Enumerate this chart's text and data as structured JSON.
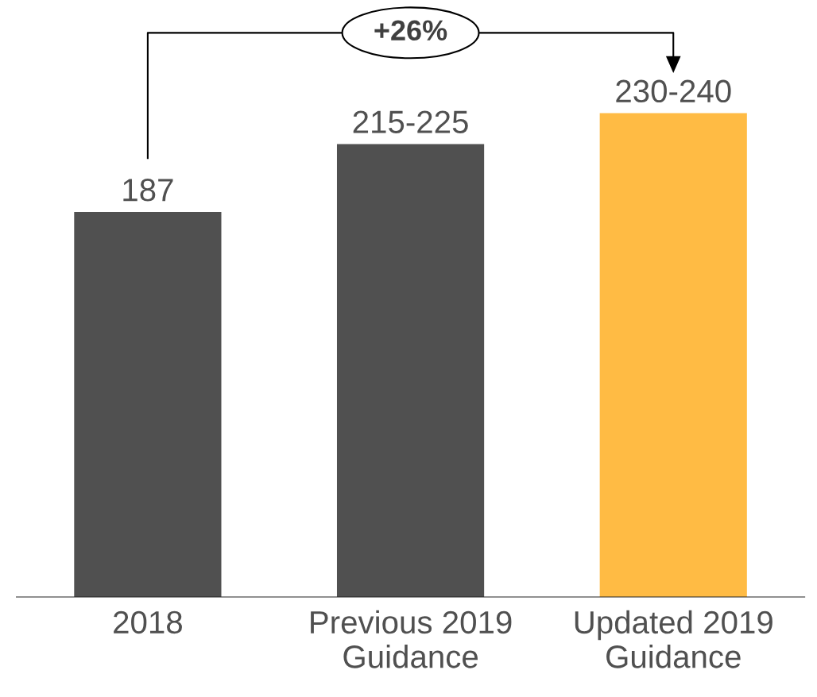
{
  "chart_data": {
    "type": "bar",
    "categories": [
      "2018",
      "Previous 2019 Guidance",
      "Updated 2019 Guidance"
    ],
    "values": [
      187,
      220,
      235
    ],
    "value_labels": [
      "187",
      "215-225",
      "230-240"
    ],
    "colors": [
      "#505050",
      "#505050",
      "#ffbb44"
    ],
    "annotations": [
      "+26%"
    ],
    "grid": false,
    "legend": false
  }
}
